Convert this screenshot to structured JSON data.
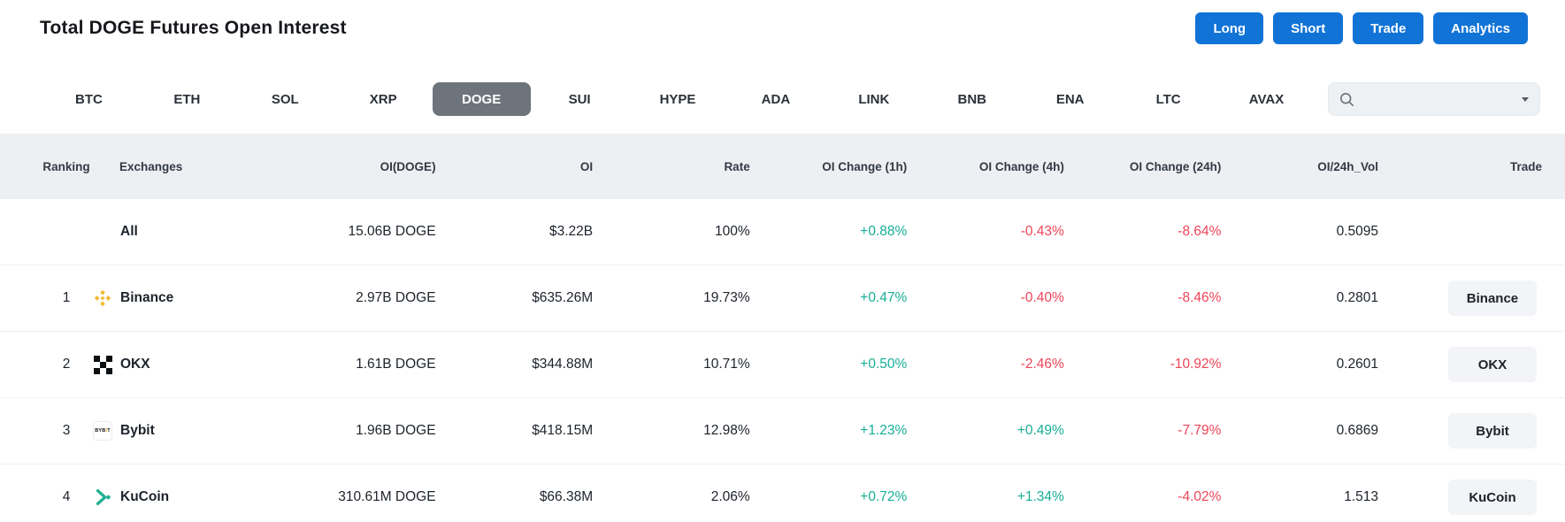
{
  "page": {
    "title": "Total DOGE Futures Open Interest"
  },
  "actions": [
    {
      "label": "Long"
    },
    {
      "label": "Short"
    },
    {
      "label": "Trade"
    },
    {
      "label": "Analytics"
    }
  ],
  "tabs": [
    {
      "label": "BTC",
      "active": false
    },
    {
      "label": "ETH",
      "active": false
    },
    {
      "label": "SOL",
      "active": false
    },
    {
      "label": "XRP",
      "active": false
    },
    {
      "label": "DOGE",
      "active": true
    },
    {
      "label": "SUI",
      "active": false
    },
    {
      "label": "HYPE",
      "active": false
    },
    {
      "label": "ADA",
      "active": false
    },
    {
      "label": "LINK",
      "active": false
    },
    {
      "label": "BNB",
      "active": false
    },
    {
      "label": "ENA",
      "active": false
    },
    {
      "label": "LTC",
      "active": false
    },
    {
      "label": "AVAX",
      "active": false
    }
  ],
  "search": {
    "placeholder": "",
    "value": "",
    "icon": "search-icon",
    "caret_icon": "chevron-down-icon"
  },
  "table": {
    "headers": [
      "Ranking",
      "Exchanges",
      "OI(DOGE)",
      "OI",
      "Rate",
      "OI Change (1h)",
      "OI Change (4h)",
      "OI Change (24h)",
      "OI/24h_Vol",
      "Trade"
    ],
    "rows": [
      {
        "ranking": "",
        "exchange": "All",
        "icon": "none",
        "oi_doge": "15.06B DOGE",
        "oi": "$3.22B",
        "rate": "100%",
        "chg1h": "+0.88%",
        "chg4h": "-0.43%",
        "chg24h": "-8.64%",
        "oi_24h_vol": "0.5095",
        "trade": ""
      },
      {
        "ranking": "1",
        "exchange": "Binance",
        "icon": "binance-icon",
        "oi_doge": "2.97B DOGE",
        "oi": "$635.26M",
        "rate": "19.73%",
        "chg1h": "+0.47%",
        "chg4h": "-0.40%",
        "chg24h": "-8.46%",
        "oi_24h_vol": "0.2801",
        "trade": "Binance"
      },
      {
        "ranking": "2",
        "exchange": "OKX",
        "icon": "okx-icon",
        "oi_doge": "1.61B DOGE",
        "oi": "$344.88M",
        "rate": "10.71%",
        "chg1h": "+0.50%",
        "chg4h": "-2.46%",
        "chg24h": "-10.92%",
        "oi_24h_vol": "0.2601",
        "trade": "OKX"
      },
      {
        "ranking": "3",
        "exchange": "Bybit",
        "icon": "bybit-icon",
        "oi_doge": "1.96B DOGE",
        "oi": "$418.15M",
        "rate": "12.98%",
        "chg1h": "+1.23%",
        "chg4h": "+0.49%",
        "chg24h": "-7.79%",
        "oi_24h_vol": "0.6869",
        "trade": "Bybit"
      },
      {
        "ranking": "4",
        "exchange": "KuCoin",
        "icon": "kucoin-icon",
        "oi_doge": "310.61M DOGE",
        "oi": "$66.38M",
        "rate": "2.06%",
        "chg1h": "+0.72%",
        "chg4h": "+1.34%",
        "chg24h": "-4.02%",
        "oi_24h_vol": "1.513",
        "trade": "KuCoin"
      }
    ]
  },
  "colors": {
    "accent_blue": "#1173d6",
    "positive_green": "#17ae96",
    "negative_red": "#ef4458",
    "active_tab_gray": "#6e747b",
    "header_bg": "#edeff2",
    "binance_yellow": "#f3ba2f",
    "kucoin_green": "#23af91",
    "bybit_yellow": "#f7a600",
    "okx_black": "#0b0e11"
  }
}
